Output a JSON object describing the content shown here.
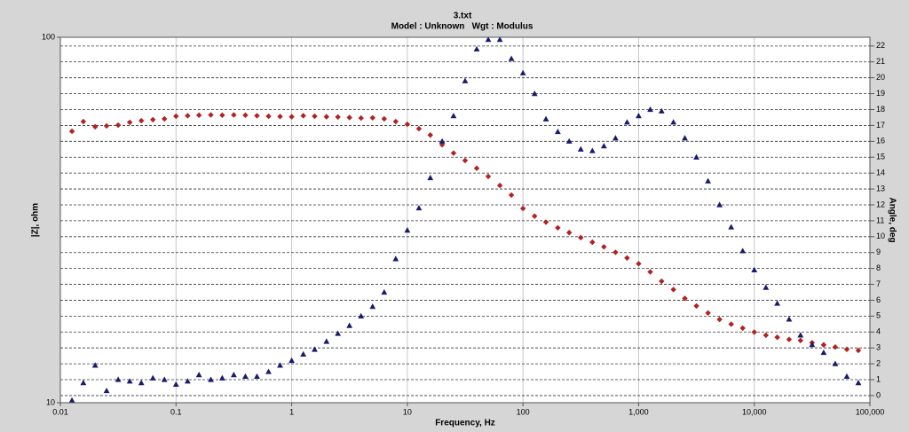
{
  "chart_data": {
    "type": "scatter",
    "title": "3.txt",
    "subtitle": [
      "Model : Unknown",
      "Wgt : Modulus"
    ],
    "x_label": "Frequency,  Hz",
    "y_label": "|Z|, ohm",
    "y2_label": "Angle, deg",
    "xscale": "log",
    "yscale": "log",
    "xlim": [
      0.01,
      100000
    ],
    "xticks": [
      0.01,
      0.1,
      1,
      10,
      100,
      {
        "value": 1000,
        "label": "1,000"
      },
      {
        "value": 10000,
        "label": "10,000"
      },
      {
        "value": 100000,
        "label": "100,000"
      }
    ],
    "ylim": [
      10,
      100
    ],
    "yticks": [
      10,
      100
    ],
    "y2lim": [
      -0.45,
      22.55
    ],
    "y2ticks": [
      0,
      1,
      2,
      3,
      4,
      5,
      6,
      7,
      8,
      9,
      10,
      11,
      12,
      13,
      14,
      15,
      16,
      17,
      18,
      19,
      20,
      21,
      22
    ],
    "grid": true,
    "x": [
      0.0126,
      0.0158,
      0.02,
      0.0251,
      0.0316,
      0.0398,
      0.0501,
      0.0631,
      0.0794,
      0.1,
      0.126,
      0.158,
      0.2,
      0.251,
      0.316,
      0.398,
      0.501,
      0.631,
      0.794,
      1,
      1.26,
      1.58,
      2,
      2.51,
      3.16,
      3.98,
      5.01,
      6.31,
      7.94,
      10,
      12.6,
      15.8,
      20,
      25.1,
      31.6,
      39.8,
      50.1,
      63.1,
      79.4,
      100,
      126,
      158,
      200,
      251,
      316,
      398,
      501,
      631,
      794,
      1000,
      1260,
      1580,
      2000,
      2510,
      3160,
      3980,
      5010,
      6310,
      7940,
      10000,
      12600,
      15800,
      20000,
      25100,
      31600,
      39800,
      50100,
      63100,
      79400
    ],
    "series": [
      {
        "color": "#b22222",
        "marker": "diamond",
        "axis": "y",
        "values": [
          55.3,
          58.8,
          56.9,
          57.2,
          57.5,
          58.5,
          59.1,
          59.5,
          59.8,
          60.8,
          61.0,
          61.2,
          61.3,
          61.2,
          61.3,
          61.2,
          61.0,
          60.8,
          60.7,
          60.6,
          61.0,
          60.8,
          60.6,
          60.5,
          60.3,
          60.1,
          60.2,
          59.8,
          58.8,
          57.8,
          56.2,
          54.0,
          50.8,
          48.2,
          46.0,
          43.8,
          41.6,
          39.3,
          37.0,
          34.0,
          32.4,
          31.2,
          30.1,
          29.2,
          28.3,
          27.5,
          26.7,
          25.8,
          24.9,
          24.0,
          22.8,
          21.5,
          20.4,
          19.3,
          18.4,
          17.6,
          16.9,
          16.4,
          16.0,
          15.6,
          15.3,
          15.1,
          14.9,
          14.8,
          14.6,
          14.4,
          14.2,
          14.0,
          13.9
        ]
      },
      {
        "color": "#1a1a6e",
        "marker": "triangle",
        "axis": "y2",
        "values": [
          -0.3,
          0.8,
          1.9,
          0.3,
          1.0,
          0.9,
          0.8,
          1.1,
          1.0,
          0.7,
          0.9,
          1.3,
          1.0,
          1.1,
          1.3,
          1.2,
          1.2,
          1.5,
          1.9,
          2.2,
          2.6,
          2.9,
          3.4,
          3.9,
          4.4,
          5.0,
          5.6,
          6.5,
          8.6,
          10.4,
          11.8,
          13.7,
          16.0,
          17.6,
          19.8,
          21.8,
          22.4,
          22.4,
          21.2,
          20.3,
          19.0,
          17.4,
          16.6,
          16.0,
          15.5,
          15.4,
          15.7,
          16.2,
          17.2,
          17.6,
          18.0,
          17.9,
          17.2,
          16.2,
          15.0,
          13.5,
          12.0,
          10.6,
          9.1,
          7.9,
          6.8,
          5.8,
          4.8,
          3.8,
          3.2,
          2.7,
          2.0,
          1.2,
          0.8
        ]
      }
    ]
  }
}
